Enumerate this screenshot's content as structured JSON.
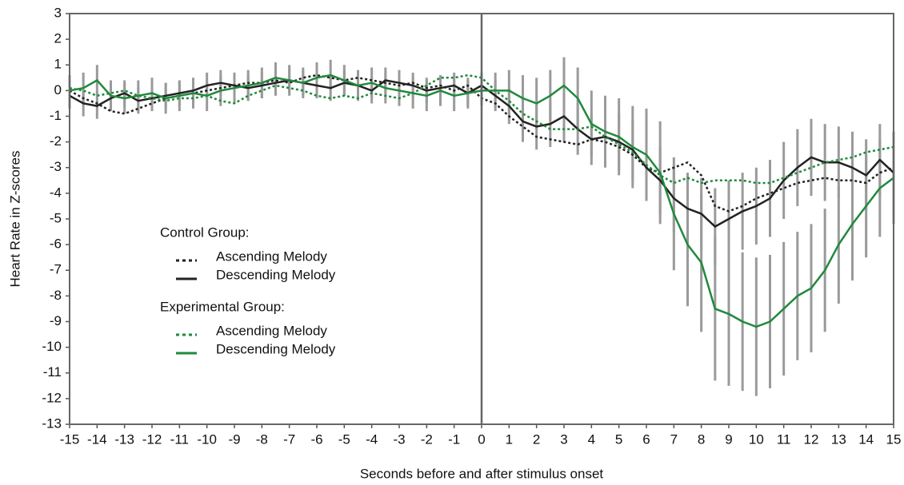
{
  "chart_data": {
    "type": "line",
    "y_label": "Heart Rate in Z-scores",
    "x_label": "Seconds before and after stimulus onset",
    "legend_titles": [
      "Control Group:",
      "Experimental Group:"
    ],
    "vline": 0,
    "x": [
      -15,
      -14.5,
      -14,
      -13.5,
      -13,
      -12.5,
      -12,
      -11.5,
      -11,
      -10.5,
      -10,
      -9.5,
      -9,
      -8.5,
      -8,
      -7.5,
      -7,
      -6.5,
      -6,
      -5.5,
      -5,
      -4.5,
      -4,
      -3.5,
      -3,
      -2.5,
      -2,
      -1.5,
      -1,
      -0.5,
      0,
      0.5,
      1,
      1.5,
      2,
      2.5,
      3,
      3.5,
      4,
      4.5,
      5,
      5.5,
      6,
      6.5,
      7,
      7.5,
      8,
      8.5,
      9,
      9.5,
      10,
      10.5,
      11,
      11.5,
      12,
      12.5,
      13,
      13.5,
      14,
      14.5,
      15
    ],
    "series": [
      {
        "name": "Ascending Melody",
        "color": "#222222",
        "dashed": true,
        "values": [
          0,
          -0.3,
          -0.5,
          -0.8,
          -0.9,
          -0.7,
          -0.5,
          -0.3,
          -0.2,
          -0.1,
          0,
          0.1,
          0.2,
          0.3,
          0.3,
          0.4,
          0.3,
          0.5,
          0.6,
          0.5,
          0.4,
          0.5,
          0.4,
          0.3,
          0.2,
          0.3,
          0.1,
          0.2,
          0,
          0.2,
          -0.3,
          -0.5,
          -1,
          -1.4,
          -1.8,
          -1.9,
          -2,
          -2.1,
          -1.9,
          -2,
          -2.2,
          -2.5,
          -3,
          -3.2,
          -3,
          -2.8,
          -3.3,
          -4.5,
          -4.7,
          -4.5,
          -4.2,
          -4,
          -3.8,
          -3.6,
          -3.5,
          -3.4,
          -3.5,
          -3.5,
          -3.6,
          -3.2,
          -3.0
        ]
      },
      {
        "name": "Descending Melody",
        "color": "#222222",
        "dashed": false,
        "values": [
          -0.2,
          -0.5,
          -0.6,
          -0.3,
          -0.1,
          -0.4,
          -0.3,
          -0.2,
          -0.1,
          0,
          0.2,
          0.3,
          0.2,
          0.1,
          0.2,
          0.3,
          0.4,
          0.3,
          0.2,
          0.1,
          0.3,
          0.2,
          0,
          0.4,
          0.3,
          0.2,
          0,
          0.1,
          0.2,
          -0.1,
          0.2,
          -0.2,
          -0.6,
          -1.2,
          -1.4,
          -1.3,
          -1.0,
          -1.5,
          -1.9,
          -1.8,
          -2.0,
          -2.3,
          -3.0,
          -3.5,
          -4.2,
          -4.6,
          -4.8,
          -5.3,
          -5.0,
          -4.7,
          -4.5,
          -4.2,
          -3.5,
          -3.0,
          -2.6,
          -2.8,
          -2.8,
          -3.0,
          -3.3,
          -2.7,
          -3.2
        ],
        "errors": [
          0.5,
          0.5,
          0.5,
          0.5,
          0.5,
          0.5,
          0.5,
          0.5,
          0.5,
          0.5,
          0.5,
          0.5,
          0.5,
          0.5,
          0.5,
          0.5,
          0.5,
          0.5,
          0.5,
          0.5,
          0.5,
          0.5,
          0.5,
          0.5,
          0.5,
          0.5,
          0.5,
          0.5,
          0.5,
          0.5,
          0.5,
          0.6,
          0.7,
          0.8,
          0.9,
          0.9,
          1.0,
          1.0,
          1.0,
          1.1,
          1.1,
          1.2,
          1.2,
          1.3,
          1.3,
          1.4,
          1.4,
          1.5,
          1.5,
          1.5,
          1.5,
          1.5,
          1.5,
          1.5,
          1.5,
          1.5,
          1.4,
          1.4,
          1.4,
          1.4,
          1.4
        ]
      },
      {
        "name": "Ascending Melody",
        "color": "#1f8a3c",
        "dashed": true,
        "values": [
          0.1,
          0,
          -0.2,
          -0.1,
          0,
          -0.2,
          -0.3,
          -0.4,
          -0.3,
          -0.3,
          -0.2,
          -0.4,
          -0.5,
          -0.2,
          0,
          0.2,
          0.1,
          0,
          -0.2,
          -0.3,
          -0.2,
          -0.3,
          -0.1,
          -0.2,
          -0.3,
          -0.1,
          0.2,
          0.5,
          0.5,
          0.6,
          0.5,
          0,
          -0.4,
          -0.9,
          -1.2,
          -1.5,
          -1.5,
          -1.5,
          -1.4,
          -1.8,
          -2.1,
          -2.4,
          -2.9,
          -3.3,
          -3.6,
          -3.4,
          -3.6,
          -3.5,
          -3.5,
          -3.5,
          -3.6,
          -3.6,
          -3.4,
          -3.2,
          -3.0,
          -2.8,
          -2.7,
          -2.6,
          -2.4,
          -2.3,
          -2.2
        ]
      },
      {
        "name": "Descending Melody",
        "color": "#1f8a3c",
        "dashed": false,
        "values": [
          0,
          0.1,
          0.4,
          -0.2,
          -0.3,
          -0.2,
          -0.1,
          -0.3,
          -0.2,
          -0.1,
          -0.2,
          0,
          0.1,
          0.2,
          0.3,
          0.5,
          0.4,
          0.3,
          0.5,
          0.6,
          0.4,
          0.2,
          0.3,
          0.1,
          0,
          -0.1,
          -0.2,
          0,
          -0.2,
          -0.1,
          0,
          0,
          0,
          -0.3,
          -0.5,
          -0.2,
          0.2,
          -0.3,
          -1.3,
          -1.6,
          -1.8,
          -2.2,
          -2.5,
          -3.2,
          -4.8,
          -6,
          -6.7,
          -8.5,
          -8.7,
          -9.0,
          -9.2,
          -9.0,
          -8.5,
          -8.0,
          -7.7,
          -7.0,
          -6.0,
          -5.2,
          -4.5,
          -3.8,
          -3.4
        ],
        "errors": [
          0.6,
          0.6,
          0.6,
          0.6,
          0.6,
          0.6,
          0.6,
          0.6,
          0.6,
          0.6,
          0.6,
          0.6,
          0.6,
          0.6,
          0.6,
          0.6,
          0.6,
          0.6,
          0.6,
          0.6,
          0.6,
          0.6,
          0.6,
          0.6,
          0.6,
          0.6,
          0.6,
          0.6,
          0.6,
          0.6,
          0.6,
          0.7,
          0.8,
          0.9,
          1.0,
          1.0,
          1.1,
          1.2,
          1.3,
          1.4,
          1.5,
          1.6,
          1.8,
          2.0,
          2.2,
          2.4,
          2.7,
          2.8,
          2.8,
          2.7,
          2.7,
          2.6,
          2.6,
          2.5,
          2.5,
          2.4,
          2.3,
          2.2,
          2.0,
          1.9,
          1.8
        ]
      }
    ],
    "error_color": "#9a9a9a",
    "xlim": [
      -15,
      15
    ],
    "ylim": [
      -13,
      3
    ],
    "xticks": [
      -15,
      -14,
      -13,
      -12,
      -11,
      -10,
      -9,
      -8,
      -7,
      -6,
      -5,
      -4,
      -3,
      -2,
      -1,
      0,
      1,
      2,
      3,
      4,
      5,
      6,
      7,
      8,
      9,
      10,
      11,
      12,
      13,
      14,
      15
    ],
    "yticks": [
      -13,
      -12,
      -11,
      -10,
      -9,
      -8,
      -7,
      -6,
      -5,
      -4,
      -3,
      -2,
      -1,
      0,
      1,
      2,
      3
    ]
  }
}
